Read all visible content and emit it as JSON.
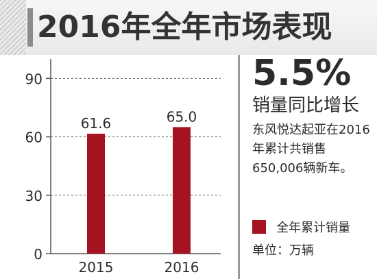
{
  "title": "2016年全年市场表现",
  "highlight": {
    "value": "5.5%",
    "label": "销量同比增长"
  },
  "description": "东风悦达起亚在2016年累计共销售650,006辆新车。",
  "legend": {
    "label": "全年累计销量",
    "color": "#a4131f"
  },
  "unit": "单位：万辆",
  "chart_data": {
    "type": "bar",
    "categories": [
      "2015",
      "2016"
    ],
    "values": [
      61.6,
      65.0
    ],
    "value_labels": [
      "61.6",
      "65.0"
    ],
    "series": [
      {
        "name": "全年累计销量",
        "values": [
          61.6,
          65.0
        ]
      }
    ],
    "yticks": [
      0,
      30,
      60,
      90
    ],
    "ylim": [
      0,
      100
    ],
    "grid": true,
    "bar_color": "#a4131f"
  }
}
